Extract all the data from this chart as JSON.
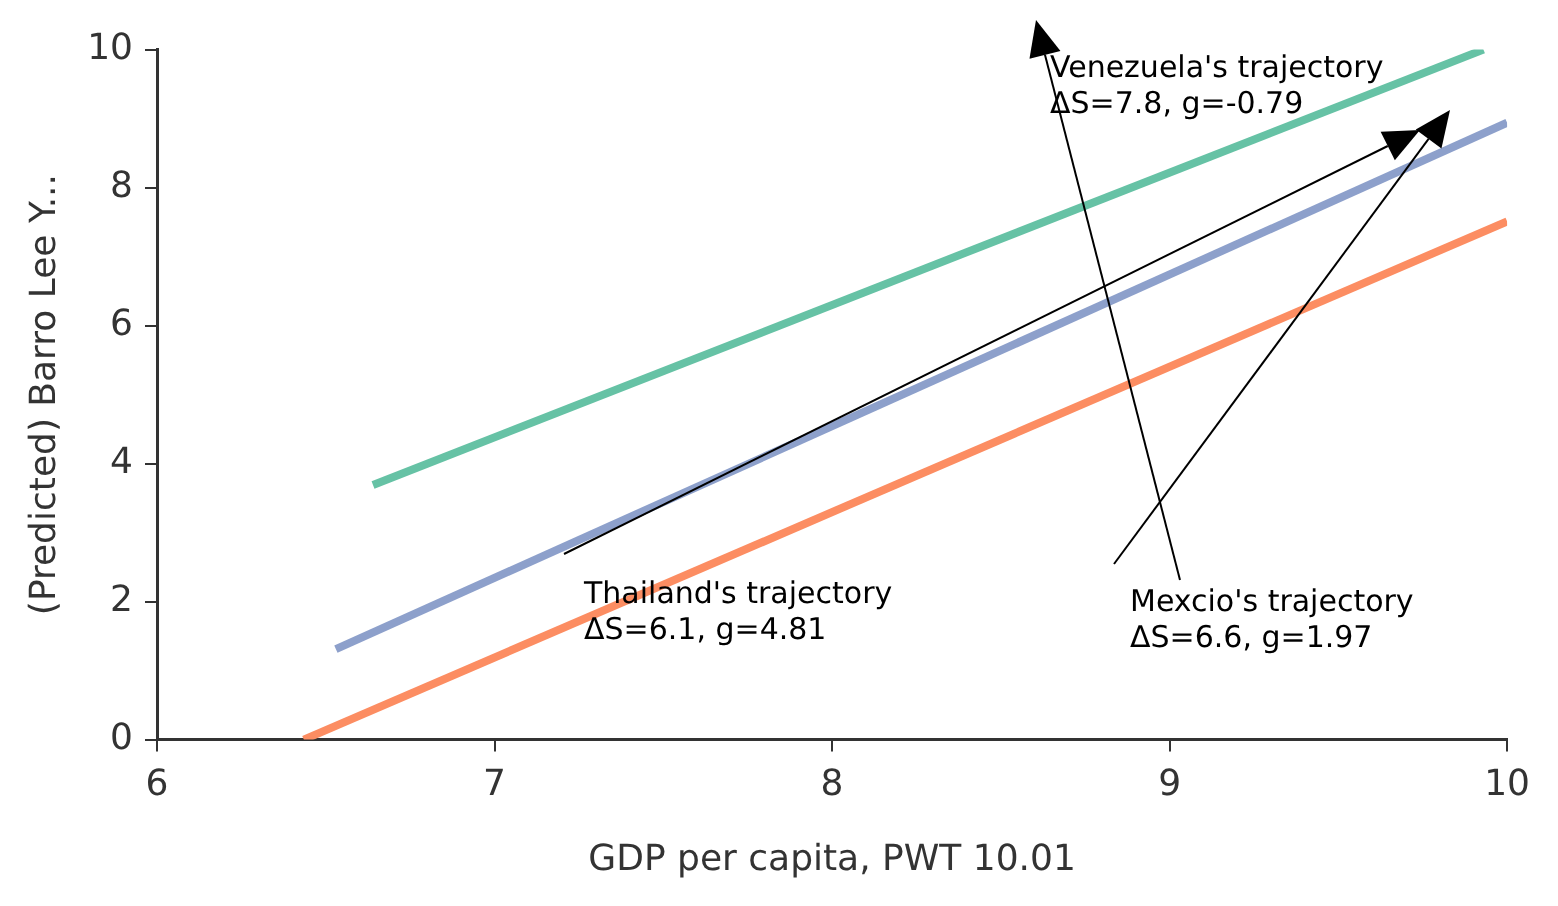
{
  "chart_data": {
    "type": "line",
    "xlabel": "GDP per capita, PWT 10.01",
    "ylabel": "(Predicted) Barro Lee Y...",
    "xlim": [
      6,
      10
    ],
    "xticks": [
      6,
      7,
      8,
      9,
      10
    ],
    "ylim": [
      0,
      10
    ],
    "yticks": [
      0,
      2,
      4,
      6,
      8,
      10
    ],
    "grid": false,
    "legend": false,
    "series": [
      {
        "color": "#66c2a5",
        "x": [
          6.64,
          9.93
        ],
        "values": [
          3.69,
          10
        ]
      },
      {
        "color": "#8da0cb",
        "x": [
          6.53,
          10
        ],
        "values": [
          1.31,
          8.94
        ]
      },
      {
        "color": "#fc8d62",
        "x": [
          6.435,
          10
        ],
        "values": [
          0,
          7.51
        ]
      }
    ],
    "annotations": [
      "Thailand's trajectory",
      "ΔS=6.1, g=4.81",
      "Mexcio's trajectory",
      "ΔS=6.6, g=1.97",
      "Venezuela's trajectory",
      "ΔS=7.8, g=-0.79"
    ]
  }
}
